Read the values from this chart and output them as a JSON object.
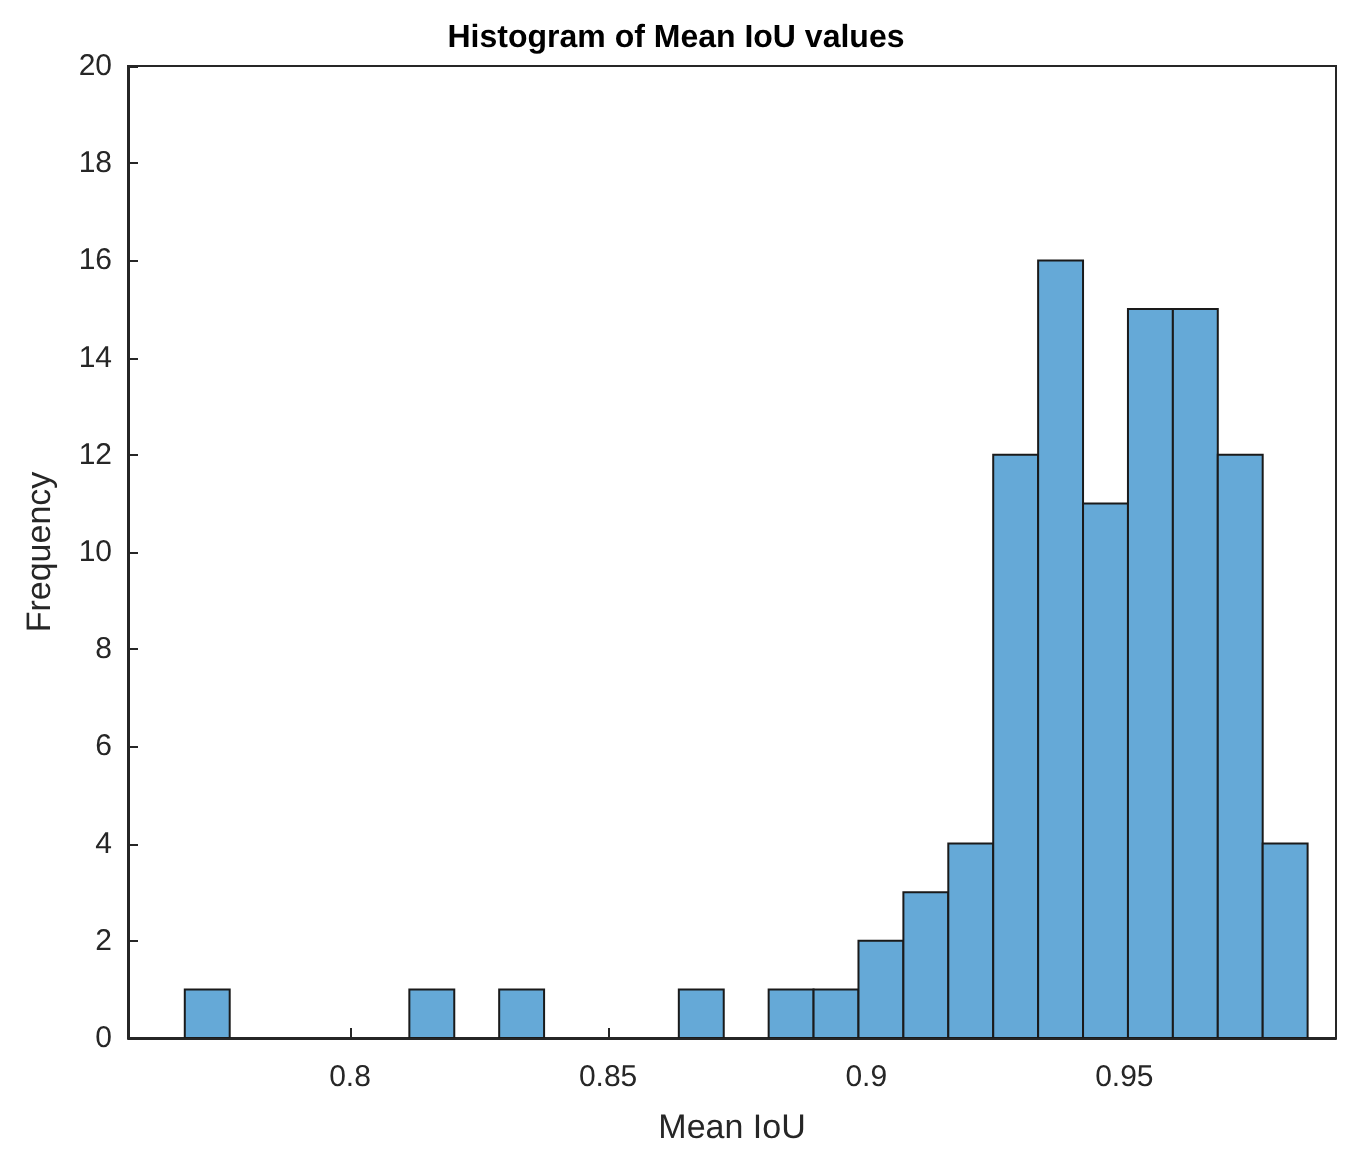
{
  "chart_data": {
    "type": "histogram",
    "title": "Histogram of Mean IoU values",
    "xlabel": "Mean IoU",
    "ylabel": "Frequency",
    "bins": [
      0.768,
      0.7767,
      0.7854,
      0.7941,
      0.8028,
      0.8115,
      0.8202,
      0.8289,
      0.8376,
      0.8463,
      0.855,
      0.8637,
      0.8724,
      0.8811,
      0.8898,
      0.8985,
      0.9072,
      0.9159,
      0.9246,
      0.9333,
      0.942,
      0.9507,
      0.9594,
      0.9681,
      0.9768,
      0.9855
    ],
    "values": [
      1,
      0,
      0,
      0,
      0,
      1,
      0,
      1,
      0,
      0,
      0,
      1,
      0,
      1,
      1,
      2,
      3,
      4,
      12,
      16,
      11,
      15,
      15,
      12,
      4
    ],
    "color": "#65a9d7",
    "xlim": [
      0.757,
      0.991
    ],
    "xticks": [
      0.8,
      0.85,
      0.9,
      0.95
    ],
    "ylim": [
      0,
      20
    ],
    "yticks": [
      0,
      2,
      4,
      6,
      8,
      10,
      12,
      14,
      16,
      18,
      20
    ]
  }
}
